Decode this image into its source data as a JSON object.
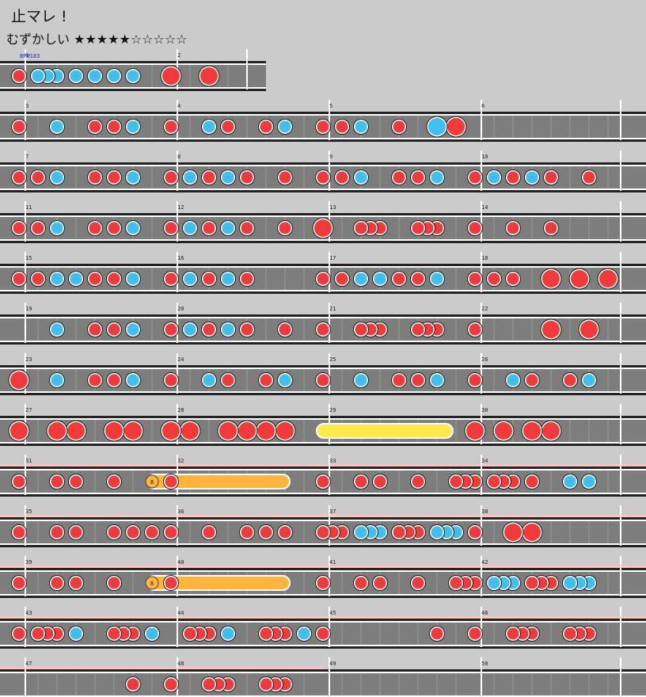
{
  "song": {
    "title": "止マレ !",
    "difficulty_label": "むずかしい",
    "stars": "★★★★★☆☆☆☆☆"
  },
  "bpm_label": "BPM183",
  "measures": [
    {
      "n": "1",
      "notes": [
        [
          0,
          "d"
        ],
        [
          0.125,
          "k"
        ],
        [
          0.1875,
          "k"
        ],
        [
          0.25,
          "k"
        ],
        [
          0.375,
          "k"
        ],
        [
          0.5,
          "k"
        ],
        [
          0.625,
          "k"
        ],
        [
          0.75,
          "k"
        ]
      ]
    },
    {
      "n": "2",
      "notes": [
        [
          0,
          "D"
        ],
        [
          0.25,
          "D"
        ]
      ]
    },
    {
      "n": "3",
      "notes": [
        [
          0,
          "d"
        ],
        [
          0.25,
          "k"
        ],
        [
          0.5,
          "d"
        ],
        [
          0.625,
          "d"
        ],
        [
          0.75,
          "k"
        ]
      ]
    },
    {
      "n": "4",
      "notes": [
        [
          0,
          "d"
        ],
        [
          0.25,
          "k"
        ],
        [
          0.375,
          "d"
        ],
        [
          0.625,
          "d"
        ],
        [
          0.75,
          "k"
        ]
      ]
    },
    {
      "n": "5",
      "notes": [
        [
          0,
          "d"
        ],
        [
          0.125,
          "d"
        ],
        [
          0.25,
          "k"
        ],
        [
          0.5,
          "d"
        ],
        [
          0.75,
          "K"
        ],
        [
          0.875,
          "D"
        ]
      ]
    },
    {
      "n": "6",
      "notes": []
    },
    {
      "n": "7",
      "notes": [
        [
          0,
          "d"
        ],
        [
          0.125,
          "d"
        ],
        [
          0.25,
          "k"
        ],
        [
          0.5,
          "d"
        ],
        [
          0.625,
          "d"
        ],
        [
          0.75,
          "k"
        ]
      ]
    },
    {
      "n": "8",
      "notes": [
        [
          0,
          "d"
        ],
        [
          0.125,
          "k"
        ],
        [
          0.25,
          "d"
        ],
        [
          0.375,
          "k"
        ],
        [
          0.5,
          "d"
        ],
        [
          0.75,
          "d"
        ]
      ]
    },
    {
      "n": "9",
      "notes": [
        [
          0,
          "d"
        ],
        [
          0.125,
          "d"
        ],
        [
          0.25,
          "k"
        ],
        [
          0.5,
          "d"
        ],
        [
          0.625,
          "d"
        ],
        [
          0.75,
          "k"
        ]
      ]
    },
    {
      "n": "10",
      "notes": [
        [
          0,
          "d"
        ],
        [
          0.125,
          "k"
        ],
        [
          0.25,
          "d"
        ],
        [
          0.375,
          "k"
        ],
        [
          0.5,
          "d"
        ],
        [
          0.75,
          "d"
        ]
      ]
    },
    {
      "n": "11",
      "notes": [
        [
          0,
          "d"
        ],
        [
          0.125,
          "d"
        ],
        [
          0.25,
          "k"
        ],
        [
          0.5,
          "d"
        ],
        [
          0.625,
          "d"
        ],
        [
          0.75,
          "k"
        ]
      ]
    },
    {
      "n": "12",
      "notes": [
        [
          0,
          "d"
        ],
        [
          0.125,
          "k"
        ],
        [
          0.25,
          "d"
        ],
        [
          0.375,
          "k"
        ],
        [
          0.5,
          "d"
        ],
        [
          0.75,
          "d"
        ]
      ]
    },
    {
      "n": "13",
      "notes": [
        [
          0,
          "D"
        ],
        [
          0.25,
          "d"
        ],
        [
          0.3125,
          "d"
        ],
        [
          0.375,
          "d"
        ],
        [
          0.625,
          "d"
        ],
        [
          0.6875,
          "d"
        ],
        [
          0.75,
          "d"
        ]
      ]
    },
    {
      "n": "14",
      "notes": [
        [
          0,
          "d"
        ],
        [
          0.25,
          "d"
        ],
        [
          0.5,
          "d"
        ]
      ]
    },
    {
      "n": "15",
      "notes": [
        [
          0,
          "d"
        ],
        [
          0.125,
          "d"
        ],
        [
          0.25,
          "k"
        ],
        [
          0.375,
          "k"
        ],
        [
          0.5,
          "d"
        ],
        [
          0.625,
          "d"
        ],
        [
          0.75,
          "k"
        ]
      ]
    },
    {
      "n": "16",
      "notes": [
        [
          0,
          "d"
        ],
        [
          0.125,
          "k"
        ],
        [
          0.25,
          "d"
        ],
        [
          0.375,
          "k"
        ],
        [
          0.5,
          "d"
        ]
      ]
    },
    {
      "n": "17",
      "notes": [
        [
          0,
          "d"
        ],
        [
          0.125,
          "d"
        ],
        [
          0.25,
          "k"
        ],
        [
          0.375,
          "k"
        ],
        [
          0.5,
          "d"
        ],
        [
          0.625,
          "d"
        ],
        [
          0.75,
          "k"
        ]
      ]
    },
    {
      "n": "18",
      "notes": [
        [
          0,
          "d"
        ],
        [
          0.125,
          "d"
        ],
        [
          0.25,
          "d"
        ],
        [
          0.5,
          "D"
        ],
        [
          0.6875,
          "D"
        ],
        [
          0.875,
          "D"
        ]
      ]
    },
    {
      "n": "19",
      "notes": [
        [
          0.25,
          "k"
        ],
        [
          0.5,
          "d"
        ],
        [
          0.625,
          "d"
        ],
        [
          0.75,
          "k"
        ]
      ]
    },
    {
      "n": "20",
      "notes": [
        [
          0,
          "d"
        ],
        [
          0.125,
          "k"
        ],
        [
          0.25,
          "d"
        ],
        [
          0.375,
          "k"
        ],
        [
          0.5,
          "d"
        ],
        [
          0.75,
          "d"
        ]
      ]
    },
    {
      "n": "21",
      "notes": [
        [
          0,
          "d"
        ],
        [
          0.25,
          "d"
        ],
        [
          0.3125,
          "d"
        ],
        [
          0.375,
          "d"
        ],
        [
          0.625,
          "d"
        ],
        [
          0.6875,
          "d"
        ],
        [
          0.75,
          "d"
        ]
      ]
    },
    {
      "n": "22",
      "notes": [
        [
          0,
          "d"
        ],
        [
          0.5,
          "D"
        ],
        [
          0.75,
          "D"
        ]
      ]
    },
    {
      "n": "23",
      "notes": [
        [
          0,
          "D"
        ],
        [
          0.25,
          "k"
        ],
        [
          0.5,
          "d"
        ],
        [
          0.625,
          "d"
        ],
        [
          0.75,
          "k"
        ]
      ]
    },
    {
      "n": "24",
      "notes": [
        [
          0,
          "d"
        ],
        [
          0.25,
          "k"
        ],
        [
          0.375,
          "d"
        ],
        [
          0.625,
          "d"
        ],
        [
          0.75,
          "k"
        ]
      ]
    },
    {
      "n": "25",
      "notes": [
        [
          0,
          "d"
        ],
        [
          0.25,
          "k"
        ],
        [
          0.5,
          "d"
        ],
        [
          0.625,
          "d"
        ],
        [
          0.75,
          "k"
        ]
      ]
    },
    {
      "n": "26",
      "notes": [
        [
          0,
          "d"
        ],
        [
          0.25,
          "k"
        ],
        [
          0.375,
          "d"
        ],
        [
          0.625,
          "d"
        ],
        [
          0.75,
          "k"
        ]
      ]
    },
    {
      "n": "27",
      "notes": [
        [
          0,
          "D"
        ],
        [
          0.25,
          "D"
        ],
        [
          0.375,
          "D"
        ],
        [
          0.625,
          "D"
        ],
        [
          0.75,
          "D"
        ]
      ]
    },
    {
      "n": "28",
      "notes": [
        [
          0,
          "D"
        ],
        [
          0.125,
          "D"
        ],
        [
          0.375,
          "D"
        ],
        [
          0.5,
          "D"
        ],
        [
          0.625,
          "D"
        ],
        [
          0.75,
          "D"
        ]
      ]
    },
    {
      "n": "29",
      "notes": []
    },
    {
      "n": "30",
      "notes": [
        [
          0,
          "D"
        ],
        [
          0.1875,
          "D"
        ],
        [
          0.375,
          "D"
        ],
        [
          0.5,
          "D"
        ]
      ]
    },
    {
      "n": "31",
      "notes": [
        [
          0,
          "d"
        ],
        [
          0.25,
          "d"
        ],
        [
          0.375,
          "d"
        ],
        [
          0.625,
          "d"
        ]
      ]
    },
    {
      "n": "32",
      "notes": [
        [
          0,
          "d"
        ]
      ]
    },
    {
      "n": "33",
      "notes": [
        [
          0,
          "d"
        ],
        [
          0.25,
          "d"
        ],
        [
          0.375,
          "d"
        ],
        [
          0.625,
          "d"
        ],
        [
          0.875,
          "d"
        ],
        [
          0.9375,
          "d"
        ]
      ]
    },
    {
      "n": "34",
      "notes": [
        [
          0,
          "d"
        ],
        [
          0.125,
          "d"
        ],
        [
          0.1875,
          "d"
        ],
        [
          0.25,
          "d"
        ],
        [
          0.375,
          "d"
        ],
        [
          0.625,
          "k"
        ],
        [
          0.75,
          "k"
        ]
      ]
    },
    {
      "n": "35",
      "notes": [
        [
          0,
          "d"
        ],
        [
          0.25,
          "d"
        ],
        [
          0.375,
          "d"
        ],
        [
          0.625,
          "d"
        ],
        [
          0.75,
          "d"
        ],
        [
          0.875,
          "d"
        ]
      ]
    },
    {
      "n": "36",
      "notes": [
        [
          0,
          "d"
        ],
        [
          0.25,
          "d"
        ],
        [
          0.5,
          "d"
        ],
        [
          0.625,
          "d"
        ],
        [
          0.75,
          "d"
        ]
      ]
    },
    {
      "n": "37",
      "notes": [
        [
          0,
          "d"
        ],
        [
          0.0625,
          "d"
        ],
        [
          0.125,
          "d"
        ],
        [
          0.25,
          "k"
        ],
        [
          0.3125,
          "k"
        ],
        [
          0.375,
          "k"
        ],
        [
          0.5,
          "d"
        ],
        [
          0.5625,
          "d"
        ],
        [
          0.625,
          "d"
        ],
        [
          0.75,
          "k"
        ],
        [
          0.8125,
          "k"
        ],
        [
          0.875,
          "k"
        ]
      ]
    },
    {
      "n": "38",
      "notes": [
        [
          0,
          "d"
        ],
        [
          0.25,
          "D"
        ],
        [
          0.375,
          "D"
        ]
      ]
    },
    {
      "n": "39",
      "notes": [
        [
          0,
          "d"
        ],
        [
          0.25,
          "d"
        ],
        [
          0.375,
          "d"
        ],
        [
          0.625,
          "d"
        ]
      ]
    },
    {
      "n": "40",
      "notes": [
        [
          0,
          "d"
        ]
      ]
    },
    {
      "n": "41",
      "notes": [
        [
          0,
          "d"
        ],
        [
          0.25,
          "d"
        ],
        [
          0.375,
          "d"
        ],
        [
          0.625,
          "d"
        ],
        [
          0.875,
          "d"
        ],
        [
          0.9375,
          "d"
        ]
      ]
    },
    {
      "n": "42",
      "notes": [
        [
          0,
          "d"
        ],
        [
          0.125,
          "k"
        ],
        [
          0.1875,
          "k"
        ],
        [
          0.25,
          "k"
        ],
        [
          0.375,
          "d"
        ],
        [
          0.4375,
          "d"
        ],
        [
          0.5,
          "d"
        ],
        [
          0.625,
          "k"
        ],
        [
          0.6875,
          "k"
        ],
        [
          0.75,
          "k"
        ]
      ]
    },
    {
      "n": "43",
      "notes": [
        [
          0,
          "d"
        ],
        [
          0.125,
          "d"
        ],
        [
          0.1875,
          "d"
        ],
        [
          0.25,
          "d"
        ],
        [
          0.375,
          "k"
        ],
        [
          0.625,
          "d"
        ],
        [
          0.6875,
          "d"
        ],
        [
          0.75,
          "d"
        ],
        [
          0.875,
          "k"
        ]
      ]
    },
    {
      "n": "44",
      "notes": [
        [
          0.125,
          "d"
        ],
        [
          0.1875,
          "d"
        ],
        [
          0.25,
          "d"
        ],
        [
          0.375,
          "k"
        ],
        [
          0.625,
          "d"
        ],
        [
          0.6875,
          "d"
        ],
        [
          0.75,
          "d"
        ],
        [
          0.875,
          "k"
        ]
      ]
    },
    {
      "n": "45",
      "notes": [
        [
          0,
          "d"
        ],
        [
          0.75,
          "d"
        ]
      ]
    },
    {
      "n": "46",
      "notes": [
        [
          0,
          "d"
        ],
        [
          0.25,
          "d"
        ],
        [
          0.3125,
          "d"
        ],
        [
          0.375,
          "d"
        ],
        [
          0.625,
          "d"
        ],
        [
          0.6875,
          "d"
        ],
        [
          0.75,
          "d"
        ]
      ]
    },
    {
      "n": "47",
      "notes": [
        [
          0.75,
          "d"
        ]
      ]
    },
    {
      "n": "48",
      "notes": [
        [
          0,
          "d"
        ],
        [
          0.25,
          "d"
        ],
        [
          0.3125,
          "d"
        ],
        [
          0.375,
          "d"
        ],
        [
          0.625,
          "d"
        ],
        [
          0.6875,
          "d"
        ],
        [
          0.75,
          "d"
        ]
      ]
    },
    {
      "n": "49",
      "notes": []
    },
    {
      "n": "50",
      "notes": []
    }
  ],
  "rows": [
    {
      "measures": [
        1,
        2
      ],
      "pink": false
    },
    {
      "measures": [
        3,
        4,
        5,
        6
      ],
      "pink": false
    },
    {
      "measures": [
        7,
        8,
        9,
        10
      ],
      "pink": false
    },
    {
      "measures": [
        11,
        12,
        13,
        14
      ],
      "pink": false
    },
    {
      "measures": [
        15,
        16,
        17,
        18
      ],
      "pink": false
    },
    {
      "measures": [
        19,
        20,
        21,
        22
      ],
      "pink": false
    },
    {
      "measures": [
        23,
        24,
        25,
        26
      ],
      "pink": false
    },
    {
      "measures": [
        27,
        28,
        29,
        30
      ],
      "pink": false
    },
    {
      "measures": [
        31,
        32,
        33,
        34
      ],
      "pink": true
    },
    {
      "measures": [
        35,
        36,
        37,
        38
      ],
      "pink": true
    },
    {
      "measures": [
        39,
        40,
        41,
        42
      ],
      "pink": true
    },
    {
      "measures": [
        43,
        44,
        45,
        46
      ],
      "pink": true
    },
    {
      "measures": [
        47,
        48,
        49,
        50
      ],
      "pink": true
    }
  ],
  "special_notes": [
    {
      "type": "drumroll",
      "measure": 29,
      "start": 0,
      "end": 0.8125
    },
    {
      "type": "balloon",
      "measure": 31,
      "start": 0.875,
      "end_measure": 32,
      "end": 0.75,
      "count": "8"
    },
    {
      "type": "balloon",
      "measure": 39,
      "start": 0.875,
      "end_measure": 40,
      "end": 0.75,
      "count": "8"
    }
  ],
  "colors": {
    "background": "#cbcbcb",
    "lane": "#7d7d7d",
    "gogo": "#ffc0c0",
    "don": "#f23a3a",
    "ka": "#3fc0f2",
    "drumroll": "#ffe94a",
    "balloon": "#ffb43c",
    "bpm_text": "#1f2bd6"
  }
}
